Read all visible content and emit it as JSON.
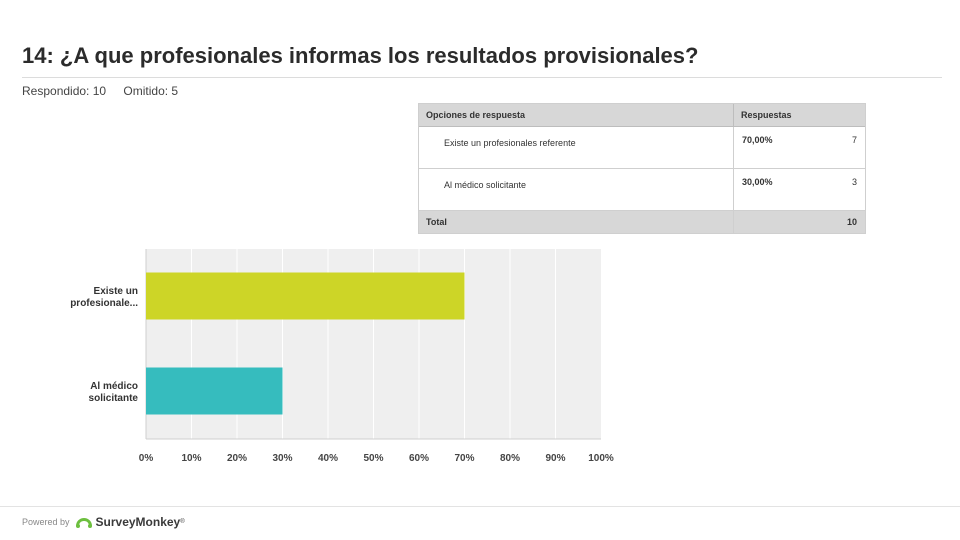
{
  "question": {
    "title": "14: ¿A que profesionales informas los resultados provisionales?"
  },
  "stats": {
    "answered": "Respondido: 10",
    "skipped": "Omitido: 5"
  },
  "table": {
    "headers": [
      "Opciones de respuesta",
      "Respuestas"
    ],
    "rows": [
      {
        "option": "Existe un profesionales referente",
        "percent": "70,00%",
        "count": "7"
      },
      {
        "option": "Al médico solicitante",
        "percent": "30,00%",
        "count": "3"
      }
    ],
    "total_label": "Total",
    "total_value": "10"
  },
  "chart_data": {
    "type": "bar",
    "orientation": "horizontal",
    "categories": [
      [
        "Existe un",
        "profesionale..."
      ],
      [
        "Al médico",
        "solicitante"
      ]
    ],
    "values": [
      70,
      30
    ],
    "colors": [
      "#cdd527",
      "#36bcbe"
    ],
    "xlim": [
      0,
      100
    ],
    "x_ticks": [
      "0%",
      "10%",
      "20%",
      "30%",
      "40%",
      "50%",
      "60%",
      "70%",
      "80%",
      "90%",
      "100%"
    ],
    "grid": true,
    "title": "",
    "xlabel": "",
    "ylabel": ""
  },
  "footer": {
    "powered": "Powered by",
    "brand": "SurveyMonkey",
    "brand_mark": "®"
  },
  "colors": {
    "plot_bg": "#efefef",
    "grid": "#ffffff",
    "header_bg": "#d7d7d7"
  }
}
